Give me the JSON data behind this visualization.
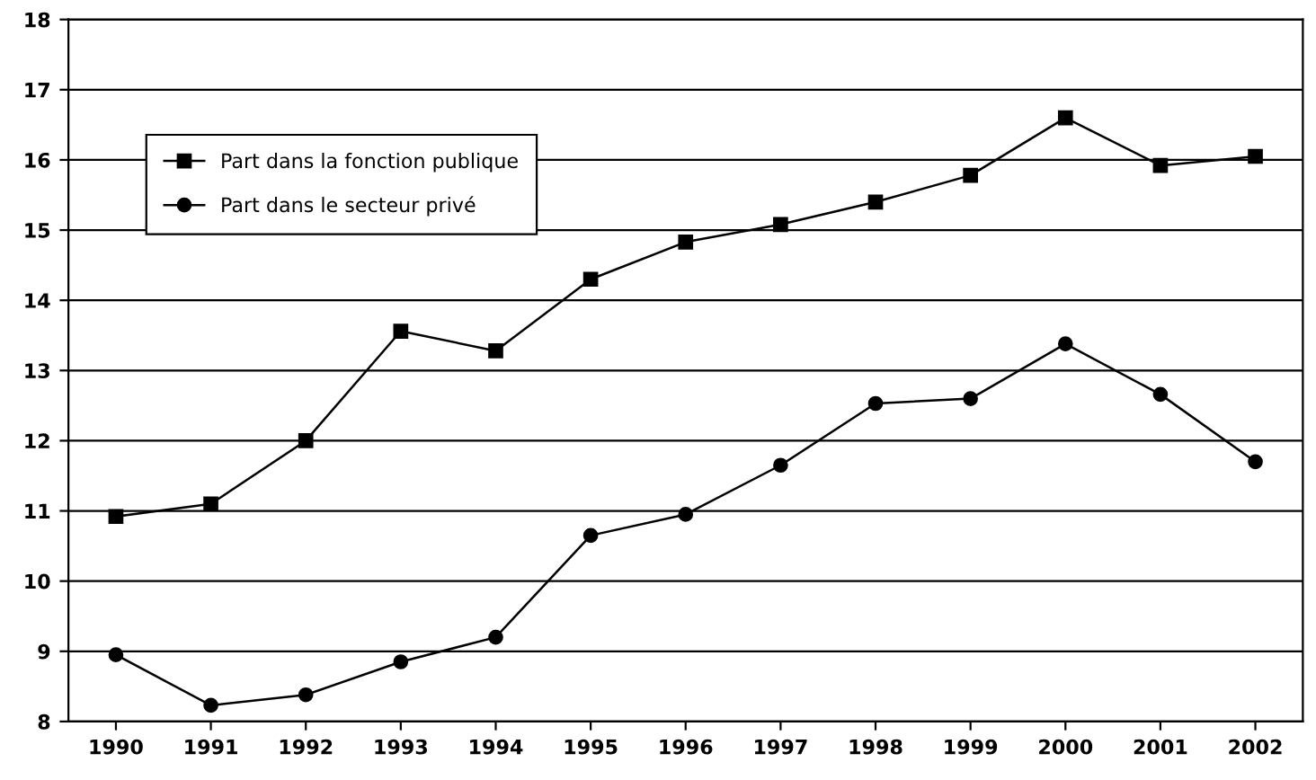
{
  "chart_data": {
    "type": "line",
    "categories": [
      "1990",
      "1991",
      "1992",
      "1993",
      "1994",
      "1995",
      "1996",
      "1997",
      "1998",
      "1999",
      "2000",
      "2001",
      "2002"
    ],
    "series": [
      {
        "name": "Part dans la fonction publique",
        "color": "#000000",
        "marker": "square",
        "values": [
          10.92,
          11.1,
          12.0,
          13.56,
          13.28,
          14.3,
          14.83,
          15.08,
          15.4,
          15.78,
          16.6,
          15.92,
          16.05
        ]
      },
      {
        "name": "Part dans le secteur privé",
        "color": "#000000",
        "marker": "circle",
        "values": [
          8.95,
          8.23,
          8.38,
          8.85,
          9.2,
          10.65,
          10.95,
          11.65,
          12.53,
          12.6,
          13.38,
          12.66,
          11.7
        ]
      }
    ],
    "ylim": [
      8,
      18
    ],
    "yticks": [
      8,
      9,
      10,
      11,
      12,
      13,
      14,
      15,
      16,
      17,
      18
    ],
    "grid": "y",
    "legend": "top left",
    "line_style": "solid"
  }
}
